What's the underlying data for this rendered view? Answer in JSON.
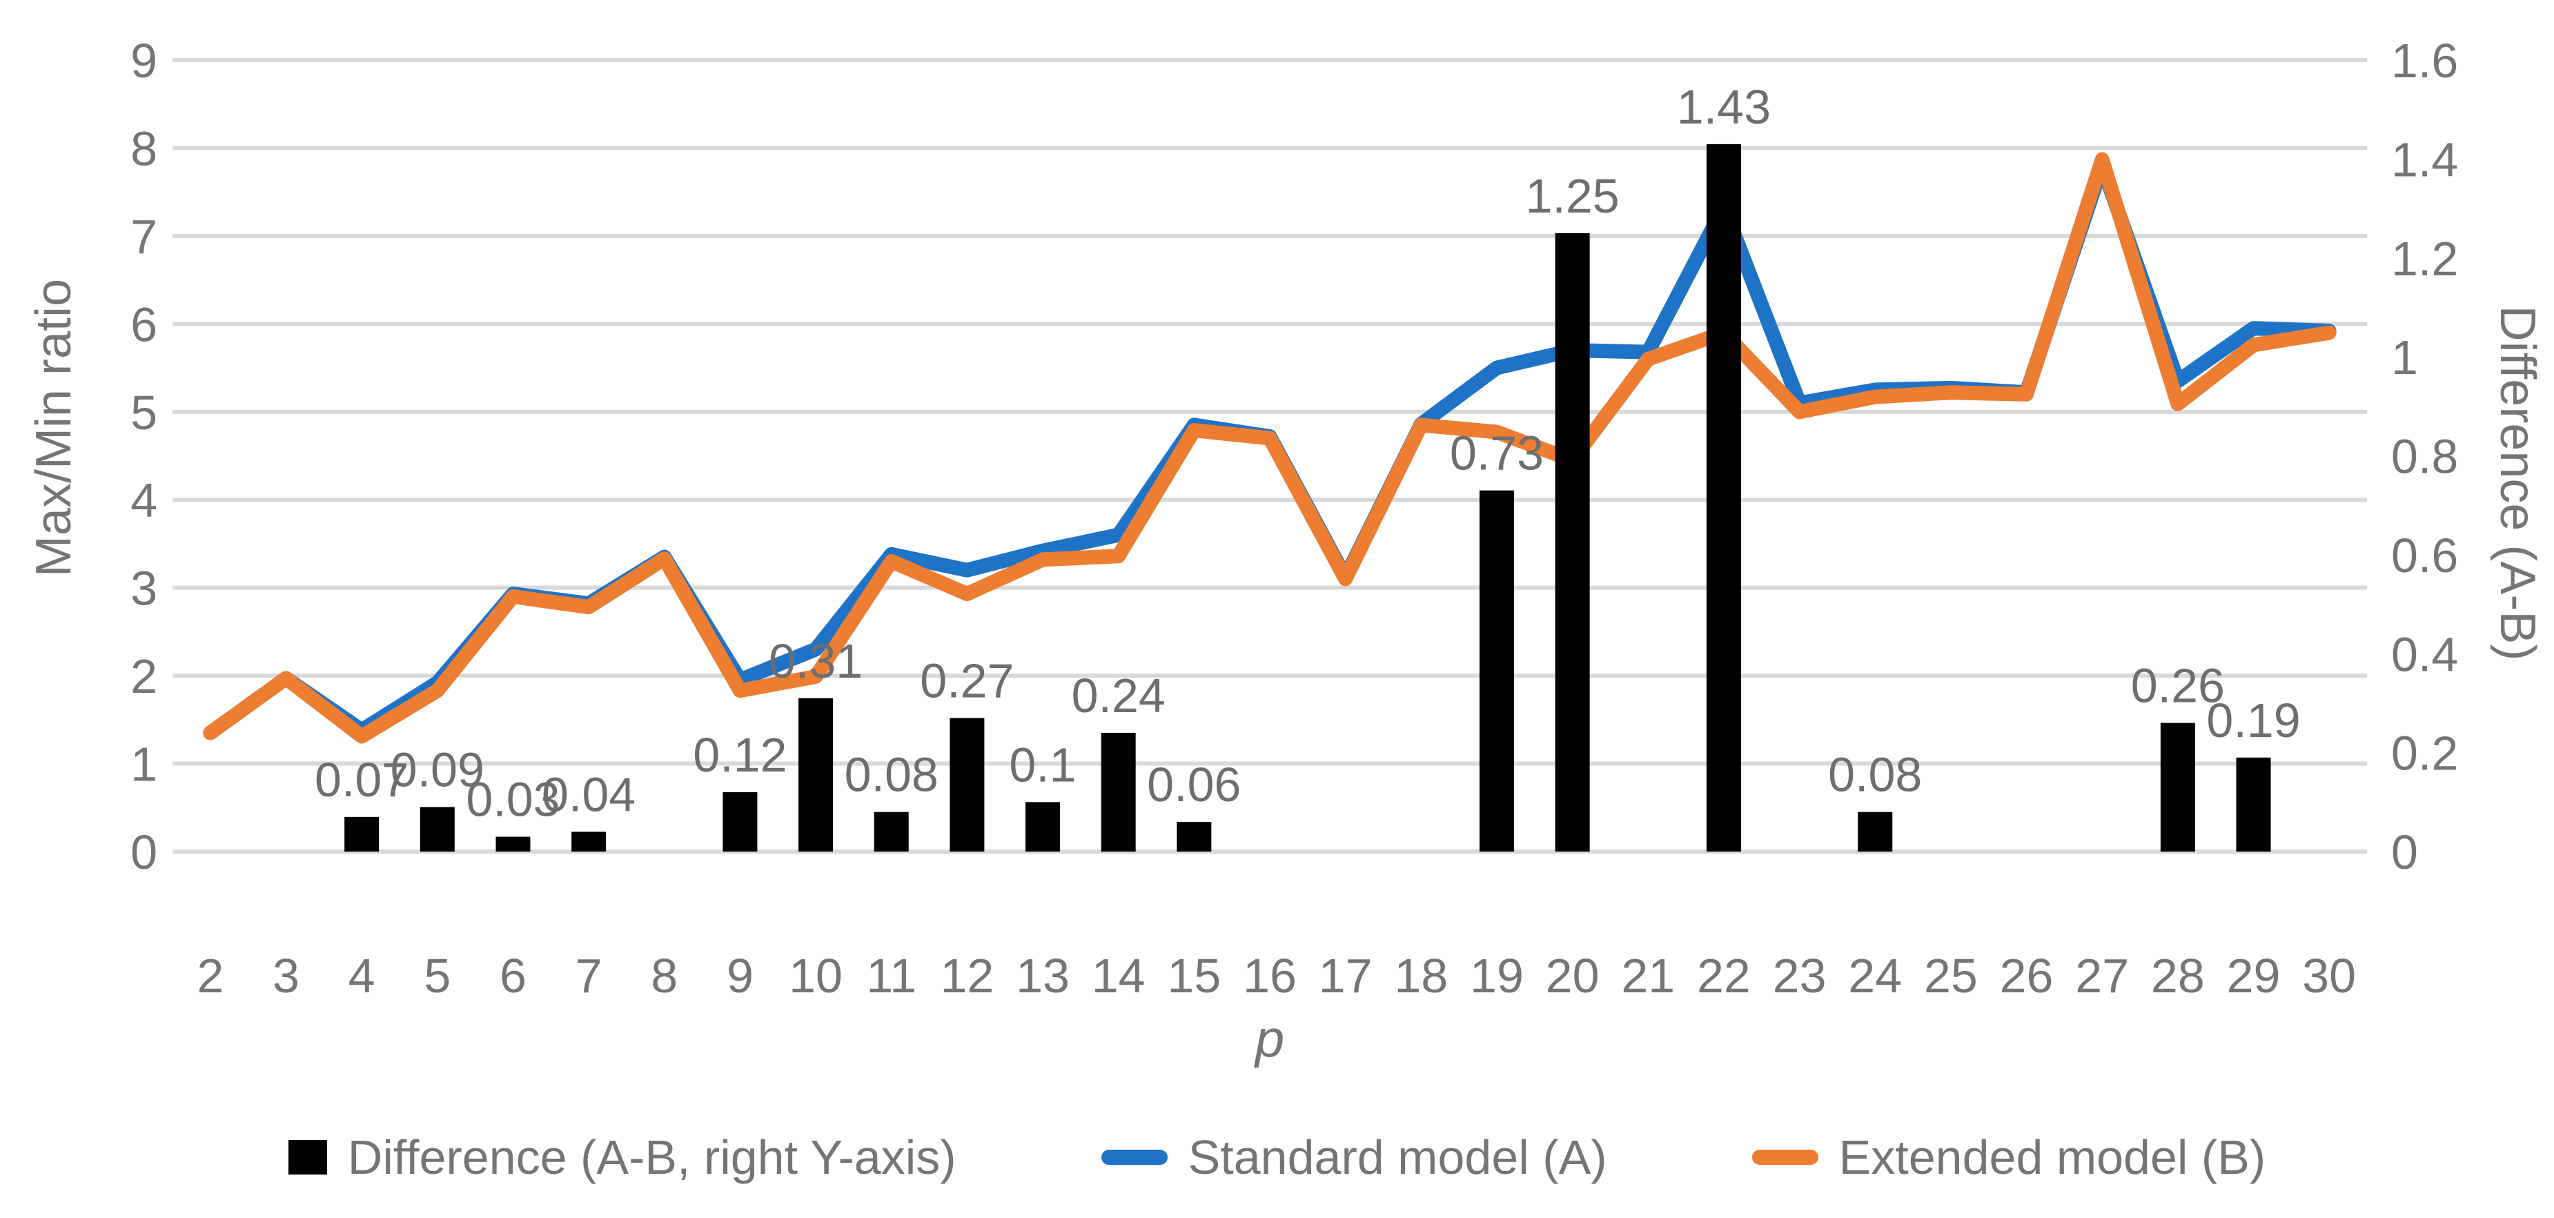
{
  "chart_data": {
    "type": "combo-bar-line",
    "xlabel": "p",
    "ylabel_left": "Max/Min ratio",
    "ylabel_right": "Difference (A-B)",
    "x": [
      2,
      3,
      4,
      5,
      6,
      7,
      8,
      9,
      10,
      11,
      12,
      13,
      14,
      15,
      16,
      17,
      18,
      19,
      20,
      21,
      22,
      23,
      24,
      25,
      26,
      27,
      28,
      29,
      30
    ],
    "ylim_left": [
      0,
      9
    ],
    "ylim_right": [
      0,
      1.6
    ],
    "yticks_left": [
      "9",
      "8",
      "7",
      "6",
      "5",
      "4",
      "3",
      "2",
      "1",
      "0"
    ],
    "yticks_right": [
      "1.6",
      "1.4",
      "1.2",
      "1",
      "0.8",
      "0.6",
      "0.4",
      "0.2",
      "0"
    ],
    "grid": true,
    "legend_position": "bottom",
    "colors": {
      "grid": "#D9D9D9",
      "axis_text": "#757575",
      "data_label": "#6E6E6E",
      "bar": "#000000",
      "line_a": "#1E73C6",
      "line_b": "#ED7D31"
    },
    "series": [
      {
        "id": "difference-bars",
        "name": "Difference (A-B, right Y-axis)",
        "type": "bar",
        "axis": "right",
        "color": "#000000",
        "points": [
          {
            "x": 4,
            "y": 0.07,
            "label": "0.07"
          },
          {
            "x": 5,
            "y": 0.09,
            "label": "0.09"
          },
          {
            "x": 6,
            "y": 0.03,
            "label": "0.03"
          },
          {
            "x": 7,
            "y": 0.04,
            "label": "0.04"
          },
          {
            "x": 9,
            "y": 0.12,
            "label": "0.12"
          },
          {
            "x": 10,
            "y": 0.31,
            "label": "0.31"
          },
          {
            "x": 11,
            "y": 0.08,
            "label": "0.08"
          },
          {
            "x": 12,
            "y": 0.27,
            "label": "0.27"
          },
          {
            "x": 13,
            "y": 0.1,
            "label": "0.1"
          },
          {
            "x": 14,
            "y": 0.24,
            "label": "0.24"
          },
          {
            "x": 15,
            "y": 0.06,
            "label": "0.06"
          },
          {
            "x": 19,
            "y": 0.73,
            "label": "0.73"
          },
          {
            "x": 20,
            "y": 1.25,
            "label": "1.25"
          },
          {
            "x": 22,
            "y": 1.43,
            "label": "1.43"
          },
          {
            "x": 24,
            "y": 0.08,
            "label": "0.08"
          },
          {
            "x": 28,
            "y": 0.26,
            "label": "0.26"
          },
          {
            "x": 29,
            "y": 0.19,
            "label": "0.19"
          }
        ]
      },
      {
        "id": "standard-model-line",
        "name": "Standard model (A)",
        "type": "line",
        "axis": "left",
        "color": "#1E73C6",
        "values": [
          1.35,
          1.97,
          1.38,
          1.92,
          2.93,
          2.82,
          3.35,
          1.95,
          2.3,
          3.38,
          3.2,
          3.42,
          3.6,
          4.85,
          4.72,
          3.12,
          4.86,
          5.5,
          5.7,
          5.68,
          7.33,
          5.1,
          5.25,
          5.27,
          5.22,
          7.8,
          5.35,
          5.95,
          5.92
        ]
      },
      {
        "id": "extended-model-line",
        "name": "Extended model (B)",
        "type": "line",
        "axis": "left",
        "color": "#ED7D31",
        "values": [
          1.35,
          1.97,
          1.31,
          1.83,
          2.9,
          2.78,
          3.33,
          1.83,
          1.99,
          3.3,
          2.93,
          3.32,
          3.36,
          4.79,
          4.7,
          3.1,
          4.85,
          4.77,
          4.45,
          5.6,
          5.9,
          5.0,
          5.17,
          5.22,
          5.2,
          7.87,
          5.09,
          5.76,
          5.9
        ]
      }
    ]
  }
}
